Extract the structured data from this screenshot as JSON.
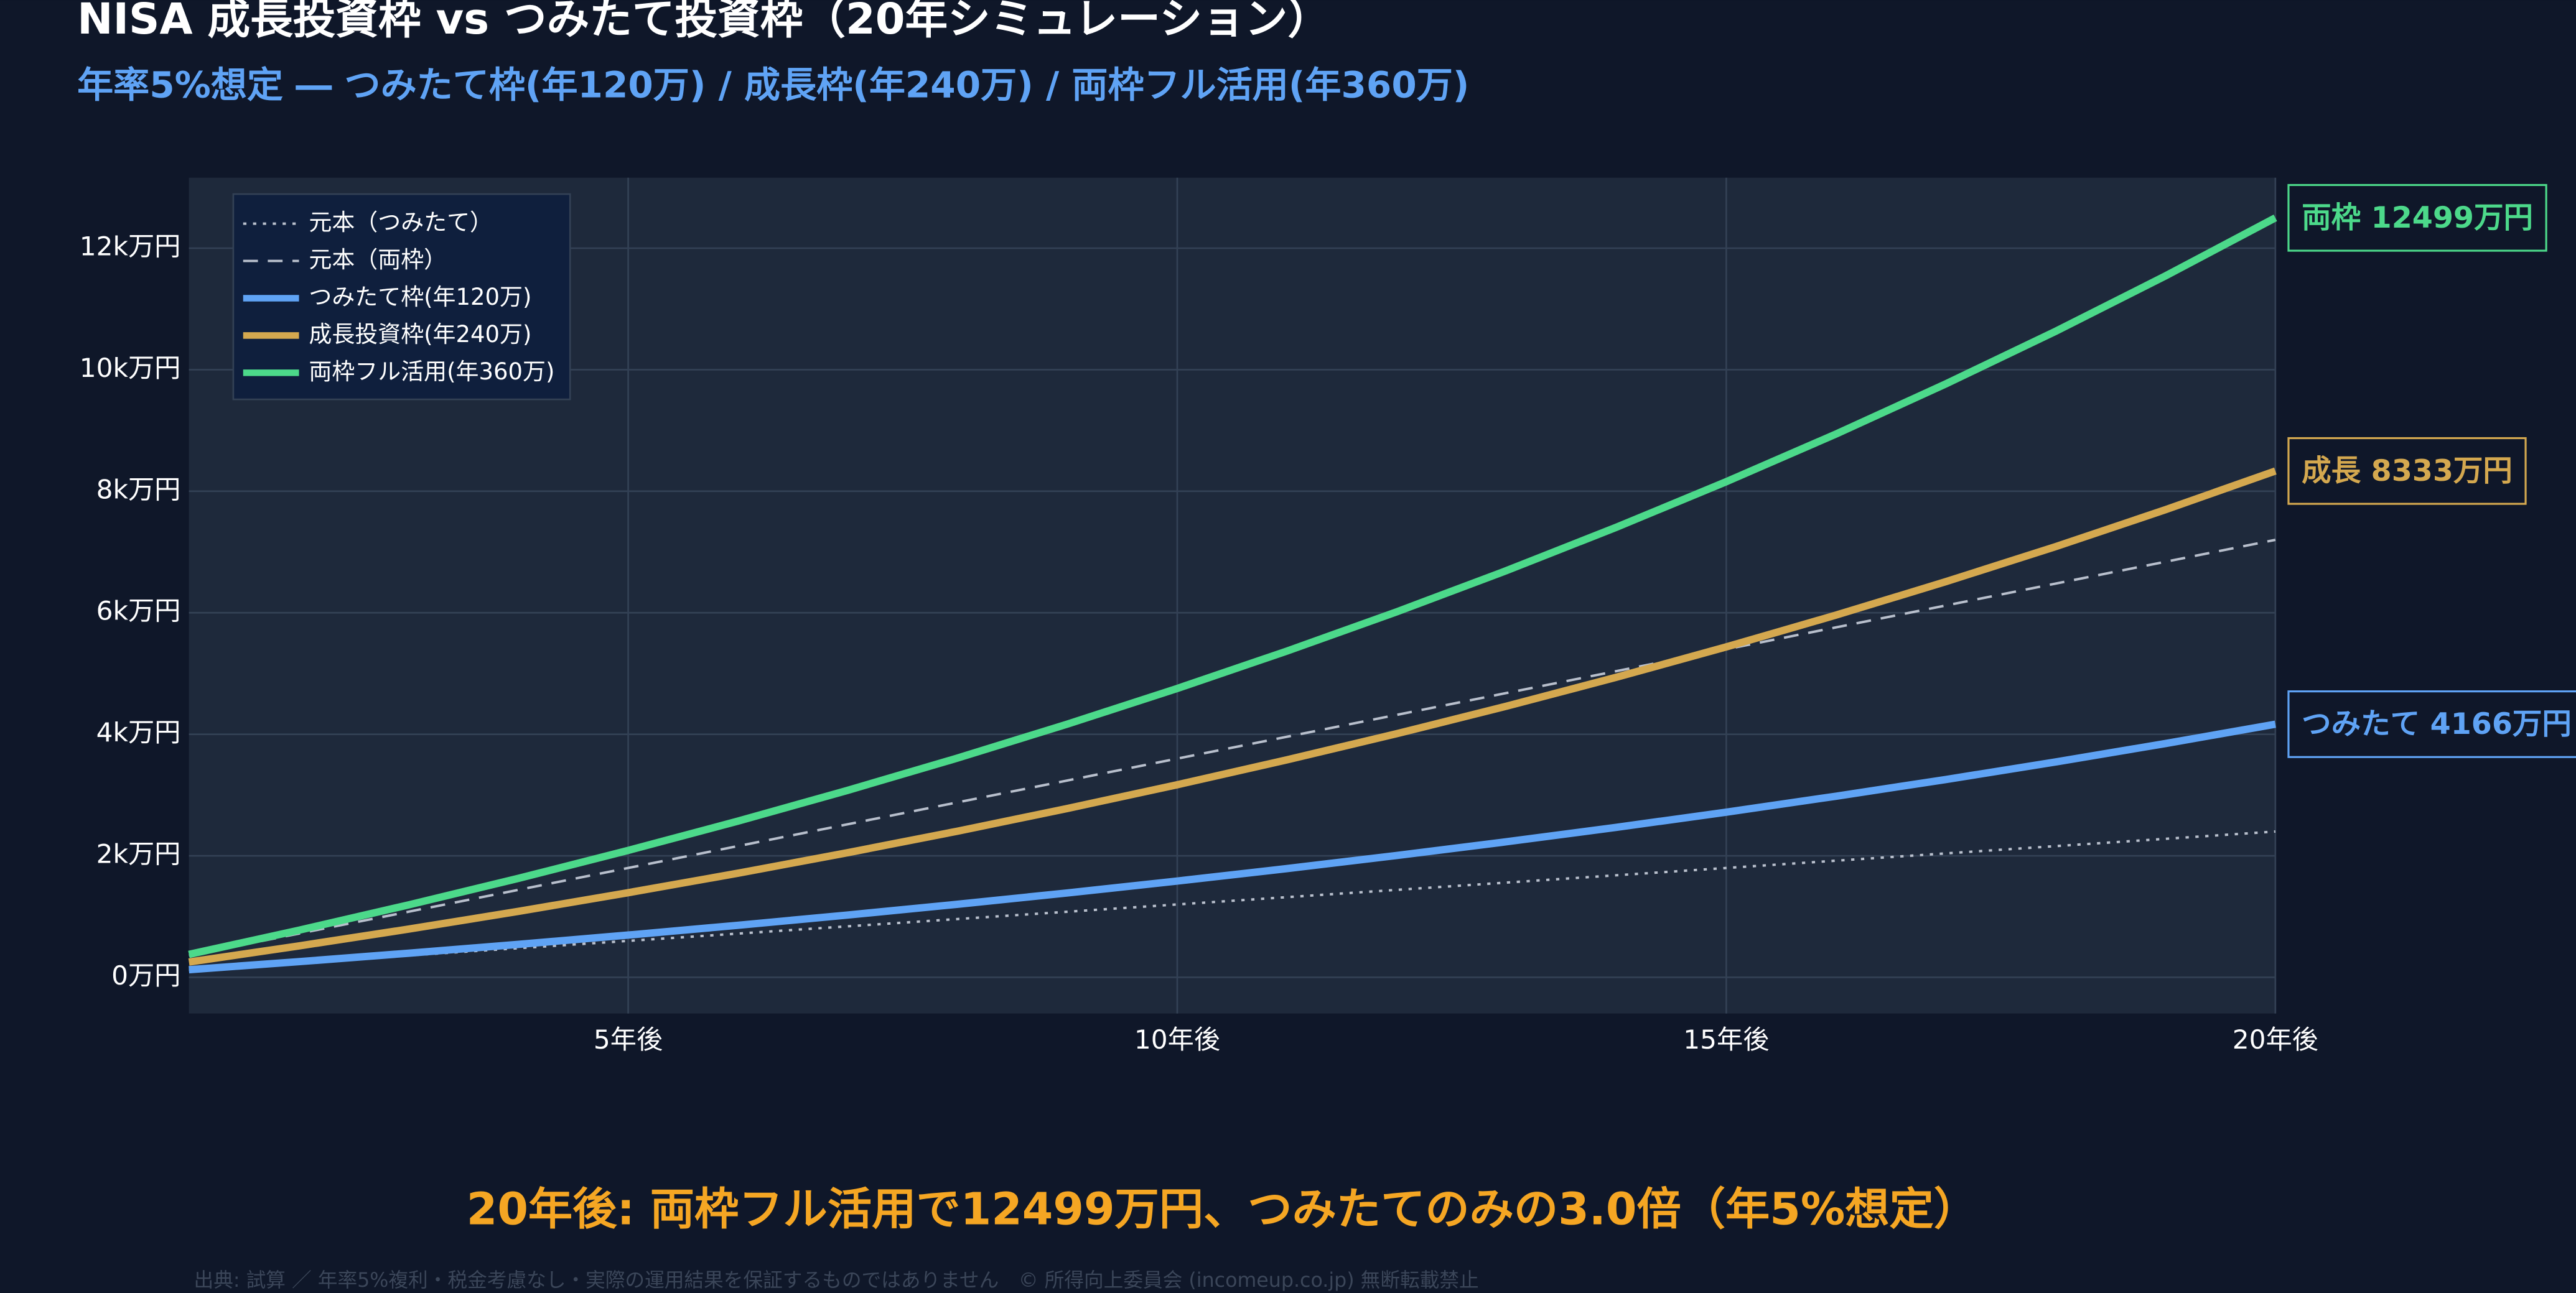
{
  "chart_data": {
    "type": "line",
    "title": "NISA 成長投資枠 vs つみたて投資枠（20年シミュレーション）",
    "subtitle": "年率5%想定 ― つみたて枠(年120万) / 成長枠(年240万) / 両枠フル活用(年360万)",
    "annotation": "20年後: 両枠フル活用で12499万円、つみたてのみの3.0倍（年5%想定）",
    "source": "出典: 試算 ／ 年率5%複利・税金考慮なし・実際の運用結果を保証するものではありません　© 所得向上委員会 (incomeup.co.jp) 無断転載禁止",
    "x": [
      1,
      2,
      3,
      4,
      5,
      6,
      7,
      8,
      9,
      10,
      11,
      12,
      13,
      14,
      15,
      16,
      17,
      18,
      19,
      20
    ],
    "xlim": [
      1,
      20
    ],
    "xticks": [
      {
        "value": 5,
        "label": "5年後"
      },
      {
        "value": 10,
        "label": "10年後"
      },
      {
        "value": 15,
        "label": "15年後"
      },
      {
        "value": 20,
        "label": "20年後"
      }
    ],
    "ylim": [
      -595,
      13160
    ],
    "yticks": [
      {
        "value": 0,
        "label": "0万円"
      },
      {
        "value": 2000,
        "label": "2k万円"
      },
      {
        "value": 4000,
        "label": "4k万円"
      },
      {
        "value": 6000,
        "label": "6k万円"
      },
      {
        "value": 8000,
        "label": "8k万円"
      },
      {
        "value": 10000,
        "label": "10k万円"
      },
      {
        "value": 12000,
        "label": "12k万円"
      }
    ],
    "grid": true,
    "legend": "top-left",
    "series": [
      {
        "name": "元本（つみたて）",
        "color": "#b8bfcc",
        "style": "dotted",
        "values": [
          120,
          240,
          360,
          480,
          600,
          720,
          840,
          960,
          1080,
          1200,
          1320,
          1440,
          1560,
          1680,
          1800,
          1920,
          2040,
          2160,
          2280,
          2400
        ]
      },
      {
        "name": "元本（両枠）",
        "color": "#b8bfcc",
        "style": "dashed",
        "values": [
          360,
          720,
          1080,
          1440,
          1800,
          2160,
          2520,
          2880,
          3240,
          3600,
          3960,
          4320,
          4680,
          5040,
          5400,
          5760,
          6120,
          6480,
          6840,
          7200
        ]
      },
      {
        "name": "つみたて枠(年120万)",
        "color": "#5fa3f5",
        "style": "solid",
        "end_label": "つみたて 4166万円",
        "values": [
          126,
          258,
          397,
          543,
          696,
          857,
          1026,
          1203,
          1389,
          1585,
          1790,
          2006,
          2232,
          2469,
          2719,
          2981,
          3256,
          3545,
          3848,
          4166
        ]
      },
      {
        "name": "成長投資枠(年240万)",
        "color": "#d4a84f",
        "style": "solid",
        "end_label": "成長 8333万円",
        "values": [
          252,
          517,
          794,
          1086,
          1393,
          1714,
          2052,
          2406,
          2779,
          3170,
          3580,
          4011,
          4463,
          4939,
          5438,
          5962,
          6512,
          7089,
          7696,
          8333
        ]
      },
      {
        "name": "両枠フル活用(年360万)",
        "color": "#4cd98a",
        "style": "solid",
        "end_label": "両枠 12499万円",
        "values": [
          378,
          775,
          1192,
          1629,
          2089,
          2571,
          3078,
          3609,
          4168,
          4754,
          5370,
          6016,
          6695,
          7408,
          8157,
          8942,
          9767,
          10633,
          11544,
          12499
        ]
      }
    ]
  }
}
